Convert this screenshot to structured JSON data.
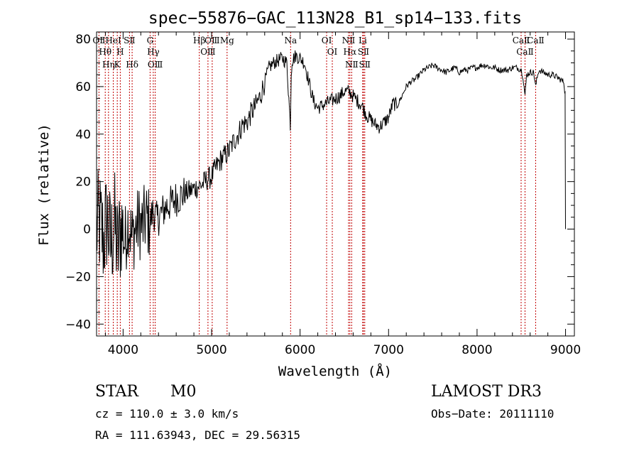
{
  "chart_data": {
    "type": "line",
    "title": "spec−55876−GAC_113N28_B1_sp14−133.fits",
    "xlabel": "Wavelength (Å)",
    "ylabel": "Flux (relative)",
    "xlim": [
      3700,
      9100
    ],
    "ylim": [
      -45,
      83
    ],
    "x_ticks": [
      4000,
      5000,
      6000,
      7000,
      8000,
      9000
    ],
    "x_tick_labels": [
      "4000",
      "5000",
      "6000",
      "7000",
      "8000",
      "9000"
    ],
    "y_ticks": [
      -40,
      -20,
      0,
      20,
      40,
      60,
      80
    ],
    "y_tick_labels": [
      "−40",
      "−20",
      "0",
      "20",
      "40",
      "60",
      "80"
    ],
    "grid": false,
    "series": [
      {
        "name": "spectrum",
        "x": [
          3700,
          3740,
          3780,
          3820,
          3860,
          3900,
          3940,
          3980,
          4020,
          4060,
          4100,
          4140,
          4180,
          4220,
          4260,
          4300,
          4340,
          4380,
          4420,
          4460,
          4500,
          4550,
          4600,
          4650,
          4700,
          4750,
          4800,
          4850,
          4900,
          4950,
          5000,
          5050,
          5100,
          5150,
          5200,
          5250,
          5300,
          5350,
          5400,
          5450,
          5500,
          5550,
          5600,
          5650,
          5700,
          5750,
          5800,
          5850,
          5890,
          5900,
          5910,
          5950,
          6000,
          6050,
          6100,
          6150,
          6200,
          6250,
          6300,
          6350,
          6400,
          6450,
          6500,
          6550,
          6600,
          6650,
          6700,
          6750,
          6800,
          6850,
          6900,
          6950,
          7000,
          7050,
          7100,
          7150,
          7200,
          7250,
          7300,
          7350,
          7400,
          7450,
          7500,
          7550,
          7600,
          7650,
          7700,
          7750,
          7800,
          7850,
          7900,
          7950,
          8000,
          8050,
          8100,
          8150,
          8200,
          8250,
          8300,
          8350,
          8400,
          8450,
          8500,
          8520,
          8542,
          8560,
          8600,
          8640,
          8662,
          8680,
          8700,
          8750,
          8800,
          8850,
          8900,
          8940,
          8980,
          8995,
          9000
        ],
        "y": [
          0,
          2,
          -5,
          5,
          -8,
          3,
          -10,
          2,
          -6,
          4,
          -4,
          0,
          3,
          1,
          5,
          2,
          8,
          4,
          6,
          8,
          10,
          11,
          13,
          14,
          15,
          16,
          17,
          18,
          19,
          21,
          22,
          26,
          29,
          31,
          33,
          37,
          40,
          44,
          45,
          49,
          52,
          56,
          62,
          68,
          70,
          71,
          72,
          70,
          44,
          66,
          71,
          73,
          72,
          70,
          62,
          54,
          51,
          52,
          53,
          54,
          55,
          56,
          58,
          58,
          56,
          54,
          52,
          48,
          46,
          44,
          43,
          45,
          47,
          53,
          52,
          56,
          60,
          62,
          63,
          65,
          67,
          68,
          69,
          68,
          67,
          66,
          67,
          68,
          66,
          67,
          67,
          68,
          68,
          69,
          69,
          68,
          68,
          67,
          67,
          67,
          68,
          68,
          67,
          64,
          56,
          65,
          66,
          66,
          60,
          64,
          67,
          66,
          65,
          65,
          64,
          63,
          62,
          57,
          0
        ],
        "color": "#000000"
      }
    ],
    "line_markers": [
      {
        "label": "OⅡ",
        "wavelength": 3727
      },
      {
        "label": "Hθ",
        "wavelength": 3798
      },
      {
        "label": "Hη",
        "wavelength": 3835
      },
      {
        "label": "HeΙ",
        "wavelength": 3889
      },
      {
        "label": "K",
        "wavelength": 3934
      },
      {
        "label": "H",
        "wavelength": 3968
      },
      {
        "label": "SⅡ",
        "wavelength": 4072
      },
      {
        "label": "Hδ",
        "wavelength": 4102
      },
      {
        "label": "G",
        "wavelength": 4305
      },
      {
        "label": "Hγ",
        "wavelength": 4341
      },
      {
        "label": "OⅢ",
        "wavelength": 4363
      },
      {
        "label": "Hβ",
        "wavelength": 4861
      },
      {
        "label": "OⅢ",
        "wavelength": 4959
      },
      {
        "label": "OⅢ",
        "wavelength": 5007
      },
      {
        "label": "Mg",
        "wavelength": 5175
      },
      {
        "label": "Na",
        "wavelength": 5893
      },
      {
        "label": "OΙ",
        "wavelength": 6300
      },
      {
        "label": "OΙ",
        "wavelength": 6364
      },
      {
        "label": "NⅡ",
        "wavelength": 6548
      },
      {
        "label": "Hα",
        "wavelength": 6563
      },
      {
        "label": "NⅡ",
        "wavelength": 6583
      },
      {
        "label": "Li",
        "wavelength": 6708
      },
      {
        "label": "SⅡ",
        "wavelength": 6716
      },
      {
        "label": "SⅡ",
        "wavelength": 6731
      },
      {
        "label": "CaⅡ",
        "wavelength": 8498
      },
      {
        "label": "CaⅡ",
        "wavelength": 8542
      },
      {
        "label": "CaⅡ",
        "wavelength": 8662
      }
    ],
    "marker_color": "#c00000"
  },
  "info": {
    "object_class": "STAR",
    "subclass": "M0",
    "survey": "LAMOST DR3",
    "redshift": "cz = 110.0 ± 3.0 km/s",
    "obs_date": "Obs−Date: 20111110",
    "coords": "RA = 111.63943, DEC =  29.56315"
  }
}
